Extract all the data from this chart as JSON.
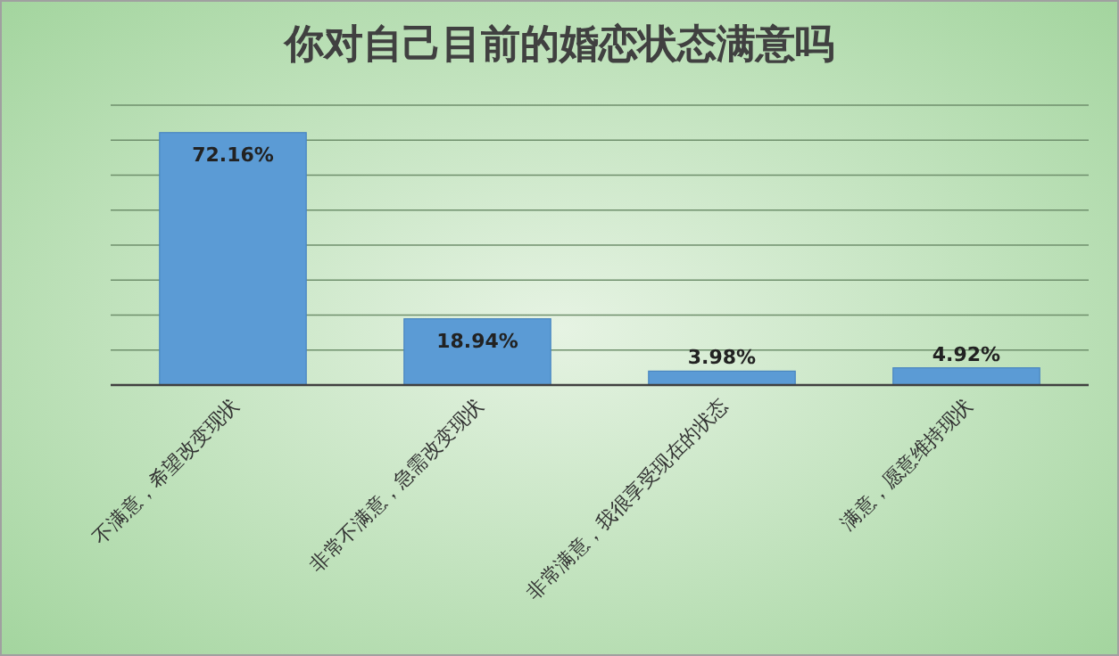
{
  "chart_data": {
    "type": "bar",
    "title": "你对自己目前的婚恋状态满意吗",
    "categories": [
      "不满意，希望改变现状",
      "非常不满意，急需改变现状",
      "非常满意，我很享受现在的状态",
      "满意，愿意维持现状"
    ],
    "values": [
      72.16,
      18.94,
      3.98,
      4.92
    ],
    "value_labels": [
      "72.16%",
      "18.94%",
      "3.98%",
      "4.92%"
    ],
    "color": "#5b9bd5",
    "ylim": [
      0,
      80
    ],
    "yticks": [
      {
        "value": 0,
        "label": null
      },
      {
        "value": 10,
        "label": null
      },
      {
        "value": 20,
        "label": null
      },
      {
        "value": 30,
        "label": null
      },
      {
        "value": 40,
        "label": null
      },
      {
        "value": 50,
        "label": null
      },
      {
        "value": 60,
        "label": null
      },
      {
        "value": 70,
        "label": null
      },
      {
        "value": 80,
        "label": null
      }
    ],
    "tick_labels": "x",
    "grid": "y"
  }
}
